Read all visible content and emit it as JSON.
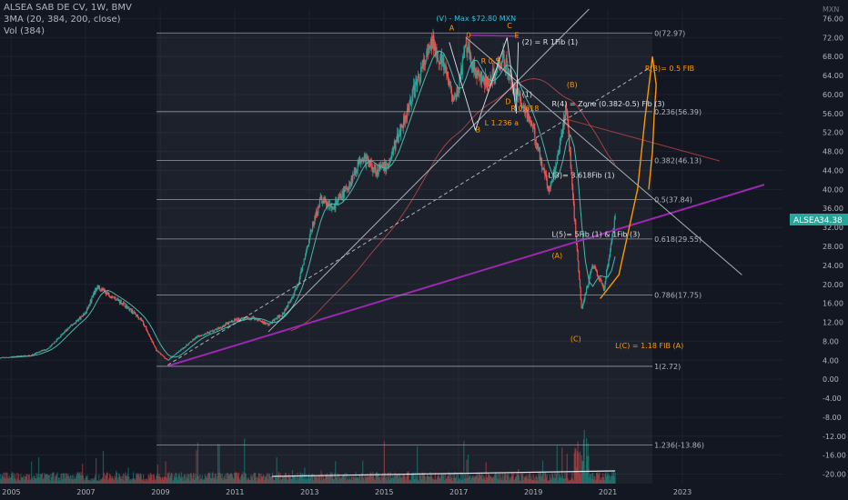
{
  "legend": {
    "symbol": "ALSEA SAB DE CV, 1W, BMV",
    "ma": "3MA (20, 384, 200, close)",
    "vol": "Vol (384)"
  },
  "price_badge": {
    "symbol": "ALSEA",
    "value": "34.38"
  },
  "currency": "MXN",
  "colors": {
    "up": "#26a69a",
    "down": "#ef5350",
    "trend": "#9c27b0",
    "wave": "#ff9800",
    "label_teal": "#26c6da"
  },
  "chart_data": {
    "type": "candlestick",
    "title": "ALSEA SAB DE CV, 1W, BMV",
    "xlabel": "",
    "ylabel": "",
    "x_ticks": [
      "2005",
      "2007",
      "2009",
      "2011",
      "2013",
      "2015",
      "2017",
      "2019",
      "2021",
      "2023"
    ],
    "y_ticks": [
      "76.00",
      "72.00",
      "68.00",
      "64.00",
      "60.00",
      "56.00",
      "52.00",
      "48.00",
      "44.00",
      "40.00",
      "36.00",
      "32.00",
      "28.00",
      "24.00",
      "20.00",
      "16.00",
      "12.00",
      "8.00",
      "4.00",
      "0.00",
      "-4.00",
      "-8.00",
      "-12.00",
      "-16.00",
      "-20.00"
    ],
    "ylim": [
      -22,
      78
    ],
    "xlim": [
      2004.7,
      2025.2
    ],
    "last_close": 34.38,
    "price_path": [
      [
        2004.7,
        4.5
      ],
      [
        2005.5,
        5.0
      ],
      [
        2006.0,
        6.5
      ],
      [
        2006.5,
        10.5
      ],
      [
        2007.0,
        14.0
      ],
      [
        2007.3,
        19.5
      ],
      [
        2007.6,
        18.0
      ],
      [
        2008.0,
        16.0
      ],
      [
        2008.5,
        12.5
      ],
      [
        2008.9,
        6.0
      ],
      [
        2009.2,
        4.0
      ],
      [
        2009.6,
        6.5
      ],
      [
        2010.0,
        9.0
      ],
      [
        2010.5,
        10.5
      ],
      [
        2011.0,
        12.5
      ],
      [
        2011.5,
        13.0
      ],
      [
        2011.9,
        11.5
      ],
      [
        2012.3,
        14.0
      ],
      [
        2012.7,
        20.0
      ],
      [
        2013.0,
        30.0
      ],
      [
        2013.3,
        38.0
      ],
      [
        2013.6,
        36.0
      ],
      [
        2014.0,
        40.0
      ],
      [
        2014.4,
        47.0
      ],
      [
        2014.8,
        44.0
      ],
      [
        2015.1,
        45.0
      ],
      [
        2015.5,
        54.0
      ],
      [
        2015.9,
        63.0
      ],
      [
        2016.3,
        71.0
      ],
      [
        2016.6,
        66.0
      ],
      [
        2016.9,
        58.0
      ],
      [
        2017.2,
        70.0
      ],
      [
        2017.5,
        64.0
      ],
      [
        2017.8,
        62.0
      ],
      [
        2018.2,
        68.0
      ],
      [
        2018.5,
        61.0
      ],
      [
        2018.8,
        57.0
      ],
      [
        2019.1,
        50.0
      ],
      [
        2019.4,
        40.0
      ],
      [
        2019.6,
        44.0
      ],
      [
        2019.9,
        58.0
      ],
      [
        2020.1,
        35.0
      ],
      [
        2020.3,
        15.0
      ],
      [
        2020.6,
        24.0
      ],
      [
        2020.9,
        19.0
      ],
      [
        2021.2,
        34.38
      ]
    ],
    "fib_levels": [
      {
        "label": "0(72.97)",
        "value": 72.97
      },
      {
        "label": "0.236(56.39)",
        "value": 56.39
      },
      {
        "label": "0.382(46.13)",
        "value": 46.13
      },
      {
        "label": "0.5(37.84)",
        "value": 37.84
      },
      {
        "label": "0.618(29.55)",
        "value": 29.55
      },
      {
        "label": "0.786(17.75)",
        "value": 17.75
      },
      {
        "label": "1(2.72)",
        "value": 2.72
      },
      {
        "label": "1.236(-13.86)",
        "value": -13.86
      }
    ],
    "annotations": [
      {
        "text": "(V) -  Max $72.80 MXN",
        "x": 2016.4,
        "y": 75.5,
        "color": "teal"
      },
      {
        "text": "A",
        "x": 2016.75,
        "y": 73.5,
        "color": "wave"
      },
      {
        "text": "0",
        "x": 2017.2,
        "y": 72.0,
        "color": "wave"
      },
      {
        "text": "C",
        "x": 2018.3,
        "y": 74.0,
        "color": "wave"
      },
      {
        "text": "E",
        "x": 2018.5,
        "y": 72.0,
        "color": "wave"
      },
      {
        "text": "(2) = R 1Fib (1)",
        "x": 2018.7,
        "y": 70.5,
        "color": "white"
      },
      {
        "text": "R 0.5",
        "x": 2017.6,
        "y": 66.5,
        "color": "wave"
      },
      {
        "text": "R(B)= 0.5 FIB",
        "x": 2022.0,
        "y": 65.0,
        "color": "wave"
      },
      {
        "text": "(B)",
        "x": 2019.9,
        "y": 61.5,
        "color": "wave"
      },
      {
        "text": "(1)",
        "x": 2018.7,
        "y": 59.5,
        "color": "white"
      },
      {
        "text": "D",
        "x": 2018.25,
        "y": 58.0,
        "color": "wave"
      },
      {
        "text": "R 0.618",
        "x": 2018.4,
        "y": 56.5,
        "color": "wave"
      },
      {
        "text": "R(4) = Zone (0.382-0.5) Fib (3)",
        "x": 2019.5,
        "y": 57.5,
        "color": "white"
      },
      {
        "text": "L 1.236 a",
        "x": 2017.7,
        "y": 53.5,
        "color": "wave"
      },
      {
        "text": "B",
        "x": 2017.45,
        "y": 52.0,
        "color": "wave"
      },
      {
        "text": "L(3)= 3.618Fib (1)",
        "x": 2019.4,
        "y": 42.5,
        "color": "white"
      },
      {
        "text": "L(5)= 5Fib (1) & 1Fib (3)",
        "x": 2019.5,
        "y": 30.0,
        "color": "white"
      },
      {
        "text": "(A)",
        "x": 2019.5,
        "y": 25.5,
        "color": "wave"
      },
      {
        "text": "(C)",
        "x": 2020.0,
        "y": 8.0,
        "color": "wave"
      },
      {
        "text": "L(C) = 1.18 FIB (A)",
        "x": 2021.2,
        "y": 6.5,
        "color": "wave"
      }
    ],
    "trendlines": [
      {
        "name": "purple-support",
        "from": [
          2009.2,
          2.8
        ],
        "to": [
          2025.2,
          41.0
        ]
      },
      {
        "name": "upper-white",
        "from": [
          2011.9,
          10.0
        ],
        "to": [
          2020.5,
          78.0
        ]
      },
      {
        "name": "dashed-channel",
        "from": [
          2009.2,
          3.0
        ],
        "to": [
          2022.2,
          66.0
        ]
      },
      {
        "name": "descending",
        "from": [
          2017.2,
          72.0
        ],
        "to": [
          2024.6,
          22.0
        ]
      },
      {
        "name": "descending-2",
        "from": [
          2019.8,
          55.0
        ],
        "to": [
          2024.0,
          46.0
        ]
      }
    ]
  }
}
